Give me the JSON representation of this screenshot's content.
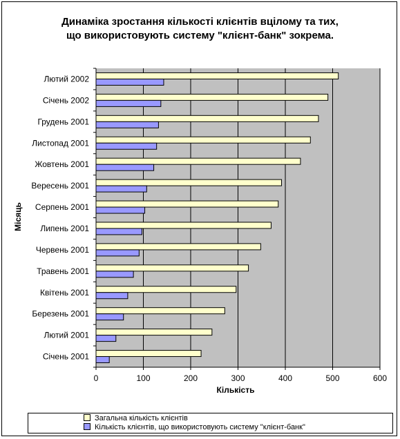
{
  "chart_data": {
    "type": "bar",
    "orientation": "horizontal",
    "title": "Динаміка зростання кількості клієнтів вцілому та тих, що використовують систему \"клієнт-банк\" зокрема.",
    "title_lines": [
      "Динаміка зростання кількості клієнтів вцілому та тих,",
      "що використовують систему \"клієнт-банк\" зокрема."
    ],
    "xlabel": "Кількість",
    "ylabel": "Місяць",
    "xlim": [
      0,
      600
    ],
    "xticks": [
      0,
      100,
      200,
      300,
      400,
      500,
      600
    ],
    "grid": true,
    "legend_position": "bottom",
    "categories": [
      "Лютий 2002",
      "Січень 2002",
      "Грудень 2001",
      "Листопад 2001",
      "Жовтень 2001",
      "Вересень 2001",
      "Серпень 2001",
      "Липень 2001",
      "Червень 2001",
      "Травень 2001",
      "Квітень 2001",
      "Березень 2001",
      "Лютий 2001",
      "Січень 2001"
    ],
    "series": [
      {
        "name": "Загальна кількість клієнтів",
        "color": "#ffffcc",
        "values": [
          512,
          490,
          470,
          453,
          432,
          392,
          385,
          370,
          348,
          322,
          296,
          272,
          245,
          222
        ]
      },
      {
        "name": "Кількість клієнтів, що використовують систему \"клієнт-банк\"",
        "color": "#9999ff",
        "values": [
          143,
          137,
          132,
          128,
          122,
          107,
          103,
          97,
          91,
          79,
          67,
          58,
          42,
          28
        ]
      }
    ]
  },
  "colors": {
    "plot_background": "#c0c0c0",
    "gridline": "#000000"
  }
}
